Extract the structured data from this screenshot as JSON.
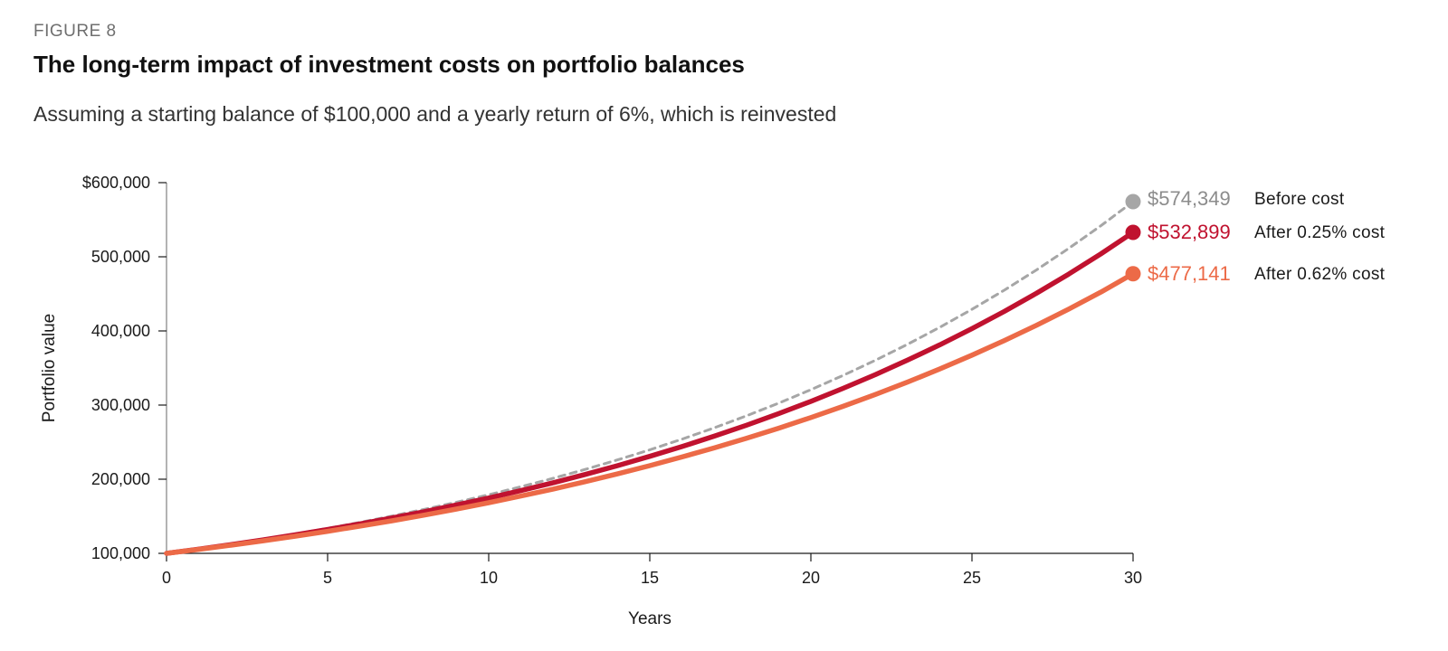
{
  "figure_label": "FIGURE 8",
  "title": "The long-term impact of investment costs on portfolio balances",
  "subtitle": "Assuming a starting balance of $100,000 and a yearly return of 6%, which is reinvested",
  "chart_data": {
    "type": "line",
    "xlabel": "Years",
    "ylabel": "Portfolio value",
    "xlim": [
      0,
      30
    ],
    "ylim": [
      100000,
      600000
    ],
    "x_ticks": [
      0,
      5,
      10,
      15,
      20,
      25,
      30
    ],
    "x_tick_labels": [
      "0",
      "5",
      "10",
      "15",
      "20",
      "25",
      "30"
    ],
    "y_ticks": [
      100000,
      200000,
      300000,
      400000,
      500000,
      600000
    ],
    "y_tick_labels": [
      "100,000",
      "200,000",
      "300,000",
      "400,000",
      "500,000",
      "$600,000"
    ],
    "grid": false,
    "legend": "end-of-line labels",
    "x": [
      0,
      1,
      2,
      3,
      4,
      5,
      6,
      7,
      8,
      9,
      10,
      11,
      12,
      13,
      14,
      15,
      16,
      17,
      18,
      19,
      20,
      21,
      22,
      23,
      24,
      25,
      26,
      27,
      28,
      29,
      30
    ],
    "series": [
      {
        "name": "Before cost",
        "end_label": "$574,349",
        "color": "#a6a6a6",
        "dashed": true,
        "values": [
          100000,
          106000,
          112360,
          119102,
          126248,
          133823,
          141852,
          150363,
          159385,
          168948,
          179085,
          189830,
          201220,
          213293,
          226090,
          239656,
          254035,
          269277,
          285434,
          302560,
          320714,
          339956,
          360354,
          381975,
          404893,
          429187,
          454938,
          482235,
          511169,
          541839,
          574349
        ]
      },
      {
        "name": "After 0.25% cost",
        "end_label": "$532,899",
        "color": "#c0122f",
        "dashed": false,
        "values": [
          100000,
          105735,
          111799,
          118210,
          124990,
          132158,
          139737,
          147751,
          156224,
          165183,
          174656,
          184672,
          195263,
          206461,
          218301,
          230820,
          244057,
          258053,
          272852,
          288500,
          305045,
          322539,
          341036,
          360594,
          381273,
          403138,
          426257,
          450702,
          476549,
          503878,
          532899
        ]
      },
      {
        "name": "After 0.62% cost",
        "end_label": "$477,141",
        "color": "#ec6a47",
        "dashed": false,
        "values": [
          100000,
          105342,
          110969,
          116897,
          123141,
          129719,
          136649,
          143948,
          151638,
          159738,
          168271,
          177260,
          186729,
          196704,
          207211,
          218280,
          229940,
          242223,
          255163,
          268793,
          283152,
          298278,
          314211,
          330996,
          348677,
          367303,
          386924,
          407593,
          429366,
          452302,
          477141
        ]
      }
    ]
  }
}
